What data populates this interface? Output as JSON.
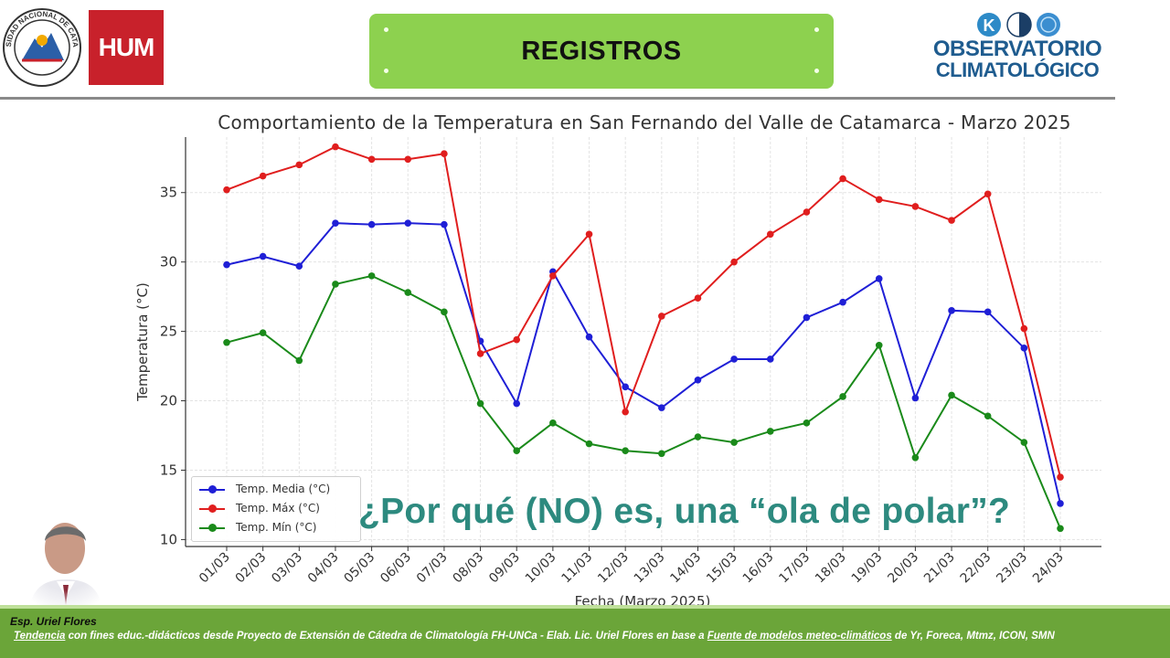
{
  "header": {
    "title": "REGISTROS",
    "logo_left_text": "UNIVERSIDAD NACIONAL DE CATAMARCA",
    "logo_hum_text": "HUM",
    "observatory_line1": "OBSERVATORIO",
    "observatory_line2": "CLIMATOLÓGICO"
  },
  "chart_data": {
    "type": "line",
    "title": "Comportamiento de la Temperatura en San Fernando del Valle de Catamarca - Marzo 2025",
    "xlabel": "Fecha (Marzo 2025)",
    "ylabel": "Temperatura (°C)",
    "categories": [
      "01/03",
      "02/03",
      "03/03",
      "04/03",
      "05/03",
      "06/03",
      "07/03",
      "08/03",
      "09/03",
      "10/03",
      "11/03",
      "12/03",
      "13/03",
      "14/03",
      "15/03",
      "16/03",
      "17/03",
      "18/03",
      "19/03",
      "20/03",
      "21/03",
      "22/03",
      "23/03",
      "24/03"
    ],
    "ylim": [
      9.5,
      39
    ],
    "yticks": [
      10,
      15,
      20,
      25,
      30,
      35
    ],
    "grid": true,
    "legend_position": "bottom-left",
    "series": [
      {
        "name": "Temp. Media (°C)",
        "color": "#1f1fd6",
        "values": [
          29.8,
          30.4,
          29.7,
          32.8,
          32.7,
          32.8,
          32.7,
          24.3,
          19.8,
          29.3,
          24.6,
          21.0,
          19.5,
          21.5,
          23.0,
          23.0,
          26.0,
          27.1,
          28.8,
          20.2,
          26.5,
          26.4,
          23.8,
          12.6
        ]
      },
      {
        "name": "Temp. Máx (°C)",
        "color": "#e01e1e",
        "values": [
          35.2,
          36.2,
          37.0,
          38.3,
          37.4,
          37.4,
          37.8,
          23.4,
          24.4,
          29.0,
          32.0,
          19.2,
          26.1,
          27.4,
          30.0,
          32.0,
          33.6,
          36.0,
          34.5,
          34.0,
          33.0,
          34.9,
          25.2,
          14.5
        ]
      },
      {
        "name": "Temp. Mín (°C)",
        "color": "#1a8a1a",
        "values": [
          24.2,
          24.9,
          22.9,
          28.4,
          29.0,
          27.8,
          26.4,
          19.8,
          16.4,
          18.4,
          16.9,
          16.4,
          16.2,
          17.4,
          17.0,
          17.8,
          18.4,
          20.3,
          24.0,
          15.9,
          20.4,
          18.9,
          17.0,
          10.8
        ]
      }
    ]
  },
  "overlay": {
    "question": "¿Por qué (NO) es, una “ola de polar”?"
  },
  "footer": {
    "author": "Esp. Uriel Flores",
    "note_part1": "Tendencia",
    "note_part2": " con fines educ.-didácticos desde Proyecto de Extensión de Cátedra de Climatología FH-UNCa    -  Elab. Lic. Uriel Flores  en base a  ",
    "note_part3": "Fuente de modelos meteo-climáticos",
    "note_part4": " de Yr, Foreca, Mtmz, ICON, SMN"
  }
}
